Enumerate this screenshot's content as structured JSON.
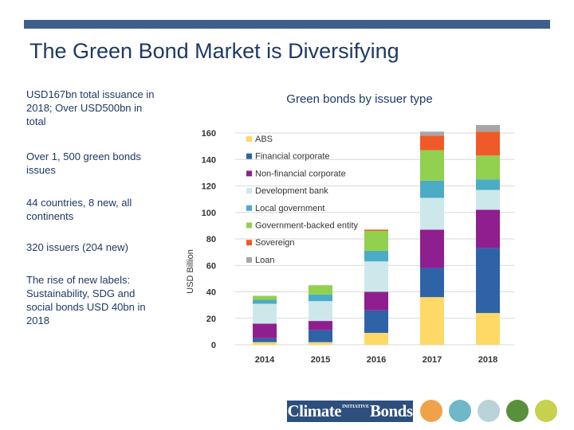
{
  "slide": {
    "title": "The Green Bond Market is Diversifying",
    "accent_color": "#3f5f8a"
  },
  "bullets": [
    "USD167bn total issuance in 2018; Over USD500bn in total",
    "Over 1, 500 green bonds issues",
    "44 countries, 8 new, all continents",
    "320 issuers (204 new)",
    "The rise of new labels: Sustainability, SDG and social bonds USD 40bn in 2018"
  ],
  "chart_data": {
    "type": "bar",
    "stacked": true,
    "title": "Green bonds by issuer type",
    "xlabel": "",
    "ylabel": "USD Billion",
    "ylim": [
      0,
      160
    ],
    "yticks": [
      0,
      20,
      40,
      60,
      80,
      100,
      120,
      140,
      160
    ],
    "categories": [
      "2014",
      "2015",
      "2016",
      "2017",
      "2018"
    ],
    "legend_position": "top-left inside plot",
    "series": [
      {
        "name": "ABS",
        "color": "#ffd966",
        "values": [
          2,
          2,
          9,
          36,
          24
        ]
      },
      {
        "name": "Financial corporate",
        "color": "#2e63a7",
        "values": [
          3,
          9,
          17,
          22,
          49
        ]
      },
      {
        "name": "Non-financial corporate",
        "color": "#8f1f8f",
        "values": [
          11,
          7,
          14,
          29,
          29
        ]
      },
      {
        "name": "Development bank",
        "color": "#cde8ea",
        "values": [
          15,
          15,
          23,
          24,
          15
        ]
      },
      {
        "name": "Local government",
        "color": "#4bacc6",
        "values": [
          3,
          5,
          8,
          13,
          8
        ]
      },
      {
        "name": "Government-backed entity",
        "color": "#92d050",
        "values": [
          3,
          7,
          15,
          23,
          18
        ]
      },
      {
        "name": "Sovereign",
        "color": "#f05a28",
        "values": [
          0,
          0,
          1,
          11,
          18
        ]
      },
      {
        "name": "Loan",
        "color": "#a6a6a6",
        "values": [
          0,
          0,
          0,
          3,
          5
        ]
      }
    ]
  },
  "footer": {
    "logo_text": "Climate",
    "logo_small": "INITIATIVE",
    "logo_text2": "Bonds",
    "theme_icons": [
      {
        "name": "energy-bulb-icon",
        "color": "#f0a24a"
      },
      {
        "name": "transport-bus-icon",
        "color": "#6fb7c9"
      },
      {
        "name": "water-drop-icon",
        "color": "#b9d3d8"
      },
      {
        "name": "forest-tree-icon",
        "color": "#5a8f3c"
      },
      {
        "name": "agriculture-plant-icon",
        "color": "#c6d14e"
      }
    ]
  }
}
